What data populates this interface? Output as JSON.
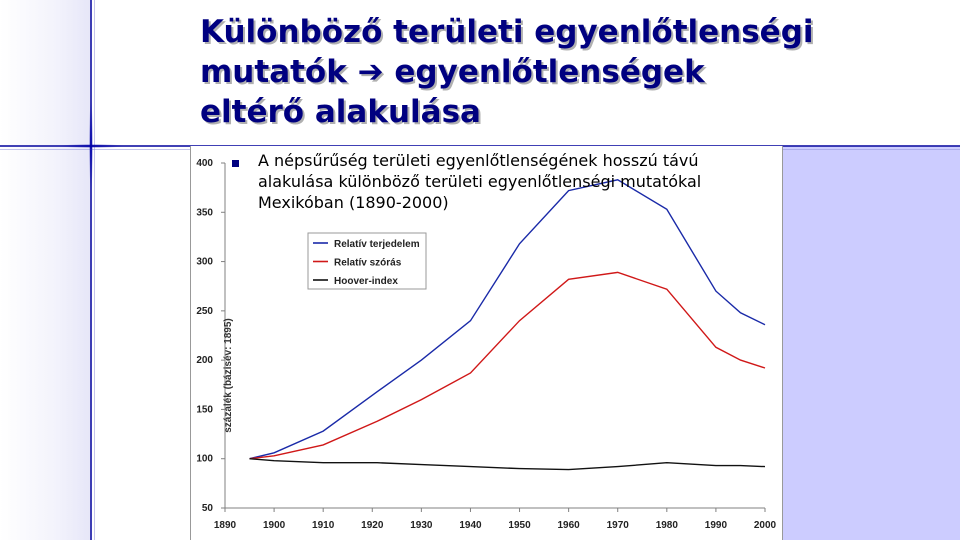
{
  "slide": {
    "title_lines": [
      "Különböző területi egyenlőtlenségi",
      "mutatók ➔ egyenlőtlenségek",
      "eltérő alakulása"
    ],
    "bullet_text": "A népsűrűség területi egyenlőtlenségének hosszú távú alakulása különböző területi egyenlőtlenségi mutatókal Mexikóban (1890-2000)"
  },
  "chart_data": {
    "type": "line",
    "x": [
      1895,
      1900,
      1910,
      1921,
      1930,
      1940,
      1950,
      1960,
      1970,
      1980,
      1990,
      1995,
      2000
    ],
    "series": [
      {
        "name": "Relatív terjedelem",
        "color": "#1a2aa8",
        "values": [
          100,
          106,
          128,
          168,
          200,
          240,
          318,
          372,
          383,
          353,
          270,
          248,
          236
        ]
      },
      {
        "name": "Relatív szórás",
        "color": "#d01818",
        "values": [
          100,
          103,
          114,
          138,
          160,
          187,
          240,
          282,
          289,
          272,
          213,
          200,
          192
        ]
      },
      {
        "name": "Hoover-index",
        "color": "#111111",
        "values": [
          100,
          98,
          96,
          96,
          94,
          92,
          90,
          89,
          92,
          96,
          93,
          93,
          92
        ]
      }
    ],
    "xticks": [
      "1890",
      "1900",
      "1910",
      "1920",
      "1930",
      "1940",
      "1950",
      "1960",
      "1970",
      "1980",
      "1990",
      "2000"
    ],
    "yticks": [
      "50",
      "100",
      "150",
      "200",
      "250",
      "300",
      "350",
      "400"
    ],
    "xlim": [
      1890,
      2000
    ],
    "ylim": [
      50,
      400
    ],
    "ylabel": "százalék (bázisév: 1895)",
    "xlabel": "",
    "grid": false,
    "legend_position": "top-left"
  }
}
